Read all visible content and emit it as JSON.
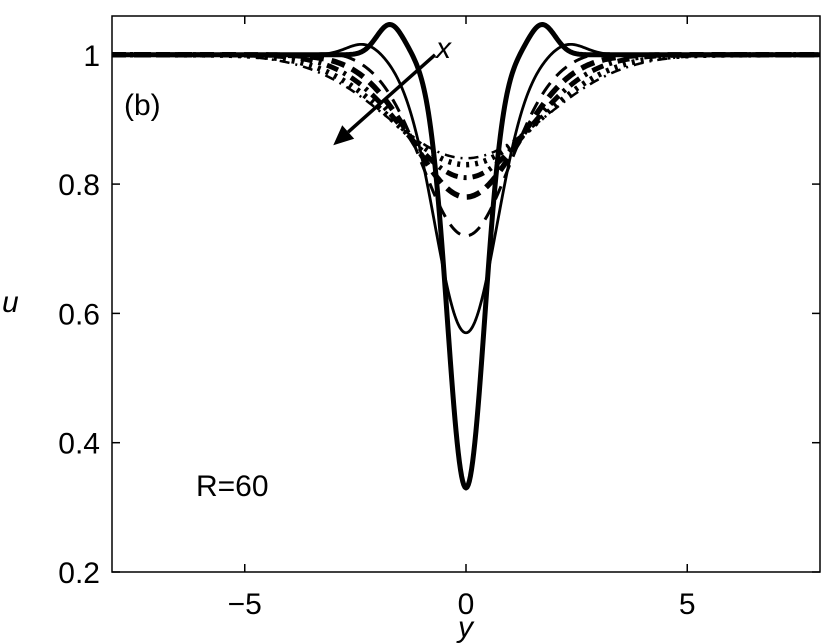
{
  "chart_data": {
    "type": "line",
    "title": "",
    "xlabel": "y",
    "ylabel": "u",
    "xlim": [
      -8,
      8
    ],
    "ylim": [
      0.2,
      1.06
    ],
    "xticks": [
      -5,
      0,
      5
    ],
    "xtick_labels": [
      "−5",
      "0",
      "5"
    ],
    "yticks": [
      0.2,
      0.4,
      0.6,
      0.8,
      1.0
    ],
    "ytick_labels": [
      "0.2",
      "0.4",
      "0.6",
      "0.8",
      "1"
    ],
    "grid": false,
    "legend": "none",
    "annotations": {
      "panel_label": "(b)",
      "param_label": "R=60",
      "arrow_label": "x",
      "arrow_from": [
        -0.7,
        1.0
      ],
      "arrow_to": [
        -3.0,
        0.86
      ]
    },
    "series": [
      {
        "style": "solid-thick",
        "min": 0.33,
        "width": 0.6,
        "overshoot": 0.047,
        "ov_pos": 1.72,
        "ov_w": 0.42
      },
      {
        "style": "solid-thin",
        "min": 0.57,
        "width": 1.0,
        "overshoot": 0.018,
        "ov_pos": 2.3,
        "ov_w": 0.55
      },
      {
        "style": "dashed-thin",
        "min": 0.72,
        "width": 1.4,
        "overshoot": 0.004,
        "ov_pos": 2.9,
        "ov_w": 0.6
      },
      {
        "style": "dashed-thick",
        "min": 0.78,
        "width": 1.7,
        "overshoot": 0,
        "ov_pos": 3,
        "ov_w": 1
      },
      {
        "style": "dashdot-thick",
        "min": 0.81,
        "width": 2.0,
        "overshoot": 0,
        "ov_pos": 3,
        "ov_w": 1
      },
      {
        "style": "dotted-thick",
        "min": 0.83,
        "width": 2.3,
        "overshoot": 0,
        "ov_pos": 3,
        "ov_w": 1
      },
      {
        "style": "dashdot-thin",
        "min": 0.84,
        "width": 2.5,
        "overshoot": 0,
        "ov_pos": 3,
        "ov_w": 1
      }
    ]
  }
}
